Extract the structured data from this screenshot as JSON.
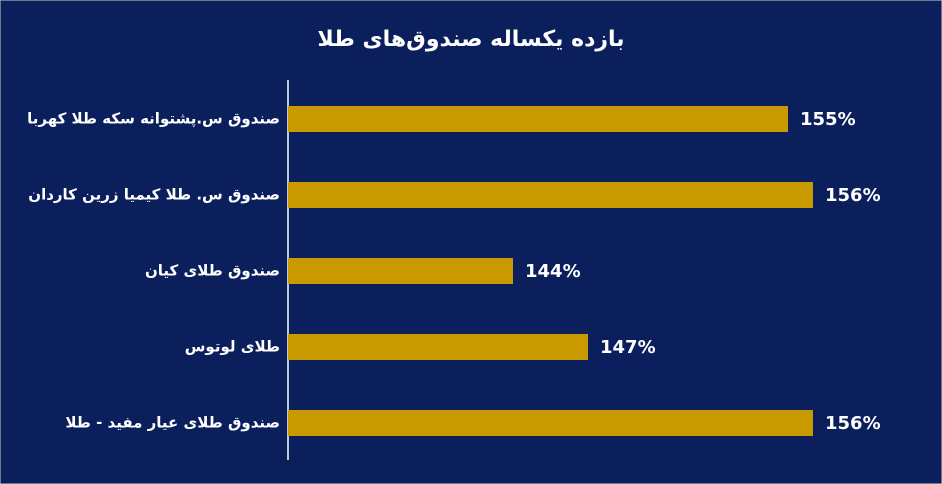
{
  "chart_data": {
    "type": "barh",
    "title": "بازده یکساله صندوق‌های طلا",
    "categories": [
      "صندوق س.پشتوانه سکه طلا کهربا",
      "صندوق س. طلا کیمیا زرین کاردان",
      "صندوق طلای کیان",
      "طلای لوتوس",
      "صندوق طلای عیار مفید - طلا"
    ],
    "values": [
      155,
      156,
      144,
      147,
      156
    ],
    "value_labels": [
      "155%",
      "156%",
      "144%",
      "147%",
      "156%"
    ],
    "color": "#c99a00",
    "xlim": [
      135,
      160
    ]
  }
}
